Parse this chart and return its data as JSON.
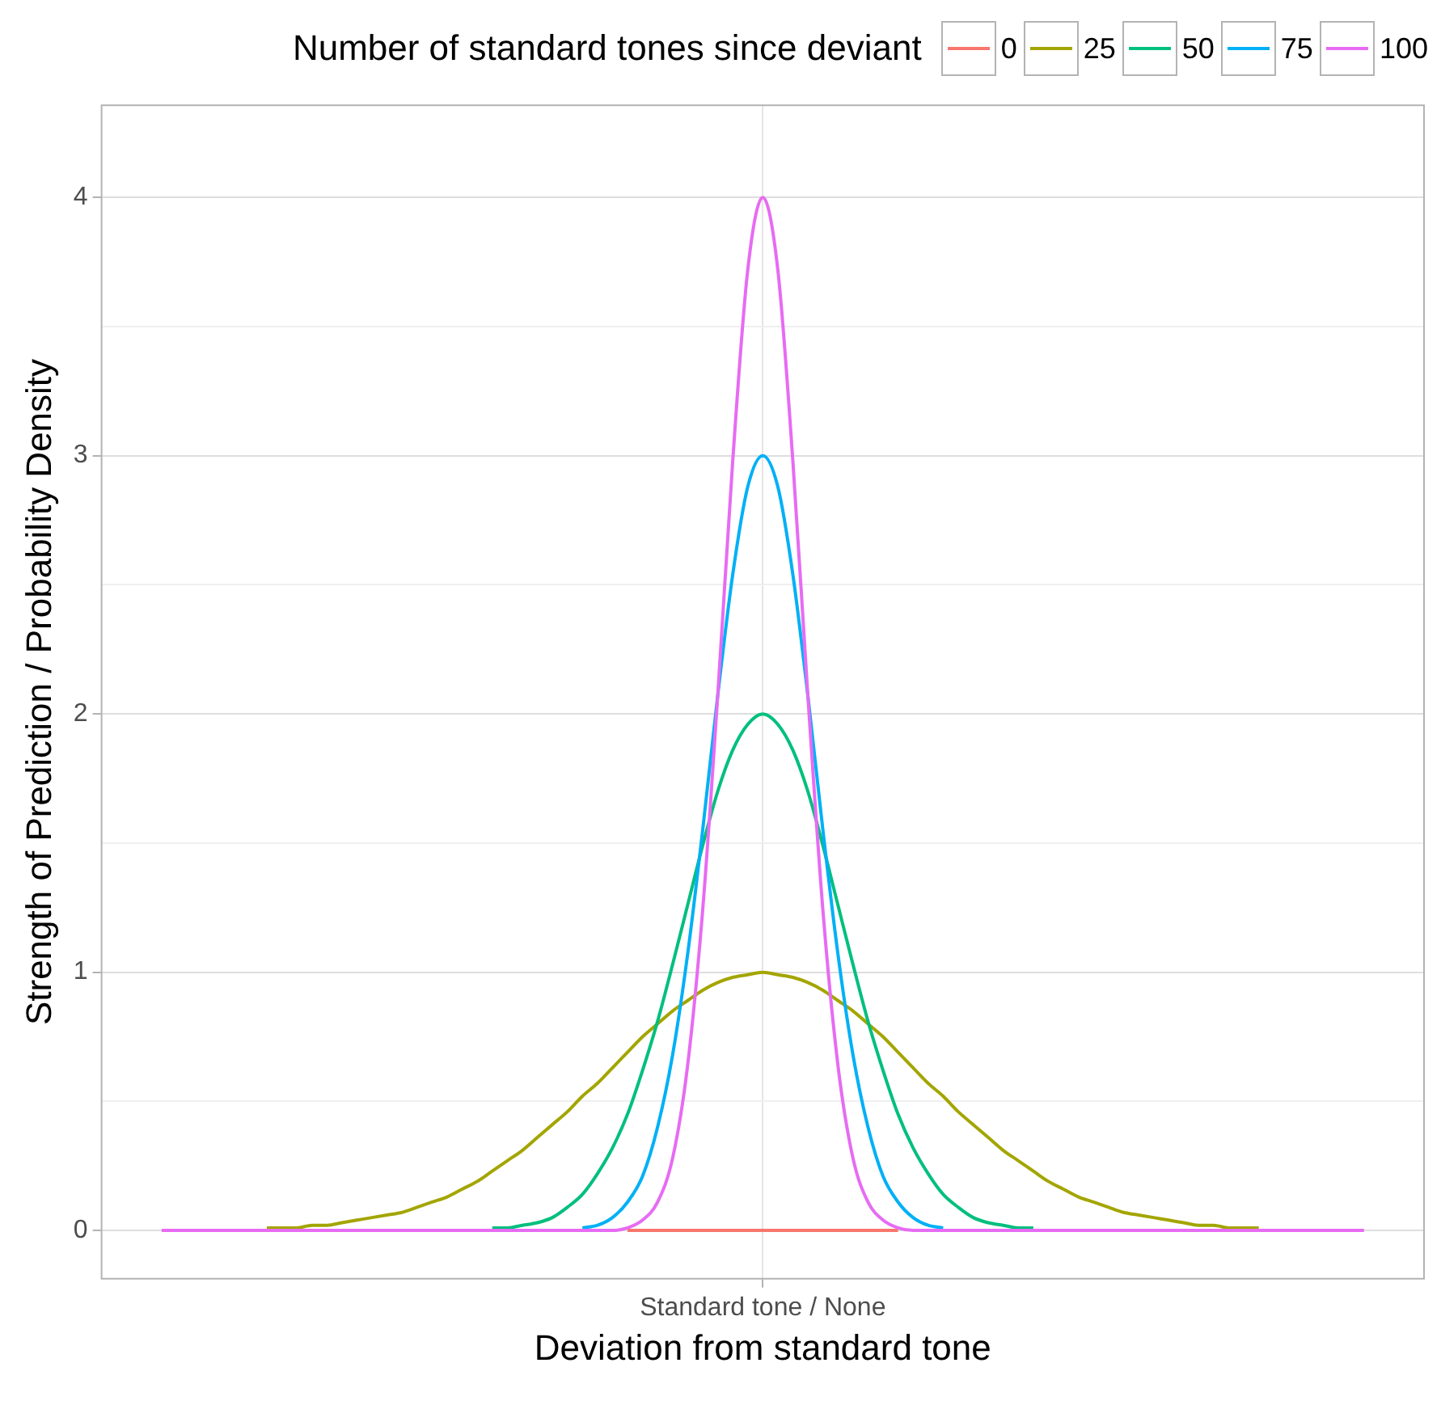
{
  "chart_data": {
    "type": "line",
    "xlabel": "Deviation from standard tone",
    "ylabel": "Strength of Prediction / Probability Density",
    "legend_title": "Number of standard tones since deviant",
    "legend": "top",
    "grid": true,
    "marker": "none",
    "line_style": "solid",
    "categories": [
      null,
      null,
      null,
      null,
      null,
      null,
      null,
      null,
      null,
      null,
      null,
      null,
      null,
      null,
      null,
      null,
      null,
      null,
      null,
      null,
      null,
      null,
      null,
      null,
      null,
      null,
      null,
      null,
      null,
      null,
      null,
      null,
      null,
      null,
      null,
      null,
      null,
      null,
      null,
      null,
      "Standard tone / None",
      null,
      null,
      null,
      null,
      null,
      null,
      null,
      null,
      null,
      null,
      null,
      null,
      null,
      null,
      null,
      null,
      null,
      null,
      null,
      null,
      null,
      null,
      null,
      null,
      null,
      null,
      null,
      null,
      null,
      null,
      null,
      null,
      null,
      null,
      null,
      null,
      null,
      null,
      null,
      null
    ],
    "ylim": [
      -0.19,
      4.36
    ],
    "yticks": [
      0,
      {
        "value": 0.5,
        "label": null
      },
      1,
      {
        "value": 1.5,
        "label": null
      },
      2,
      {
        "value": 2.5,
        "label": null
      },
      3,
      {
        "value": 3.5,
        "label": null
      },
      4
    ],
    "series": [
      {
        "name": "0",
        "color": "#f8766d",
        "values": [
          null,
          null,
          null,
          null,
          null,
          null,
          null,
          null,
          null,
          null,
          null,
          null,
          null,
          null,
          null,
          null,
          null,
          null,
          null,
          null,
          null,
          null,
          null,
          null,
          null,
          null,
          null,
          null,
          null,
          null,
          null,
          0,
          0,
          0,
          0,
          0,
          0,
          0,
          0,
          0,
          0,
          0,
          0,
          0,
          0,
          0,
          0,
          0,
          0,
          0,
          null,
          null,
          null,
          null,
          null,
          null,
          null,
          null,
          null,
          null,
          null,
          null,
          null,
          null,
          null,
          null,
          null,
          null,
          null,
          null,
          null,
          null,
          null,
          null,
          null,
          null,
          null,
          null,
          null,
          null,
          null
        ]
      },
      {
        "name": "25",
        "color": "#a3a500",
        "values": [
          null,
          null,
          null,
          null,
          null,
          null,
          null,
          0.01,
          0.01,
          0.01,
          0.02,
          0.02,
          0.03,
          0.04,
          0.05,
          0.06,
          0.07,
          0.09,
          0.11,
          0.13,
          0.16,
          0.19,
          0.23,
          0.27,
          0.31,
          0.36,
          0.41,
          0.46,
          0.52,
          0.57,
          0.63,
          0.69,
          0.75,
          0.8,
          0.85,
          0.89,
          0.93,
          0.96,
          0.98,
          0.99,
          1,
          0.99,
          0.98,
          0.96,
          0.93,
          0.89,
          0.85,
          0.8,
          0.75,
          0.69,
          0.63,
          0.57,
          0.52,
          0.46,
          0.41,
          0.36,
          0.31,
          0.27,
          0.23,
          0.19,
          0.16,
          0.13,
          0.11,
          0.09,
          0.07,
          0.06,
          0.05,
          0.04,
          0.03,
          0.02,
          0.02,
          0.01,
          0.01,
          0.01,
          null,
          null,
          null,
          null,
          null,
          null,
          null
        ]
      },
      {
        "name": "50",
        "color": "#00bf7d",
        "values": [
          null,
          null,
          null,
          null,
          null,
          null,
          null,
          null,
          null,
          null,
          null,
          null,
          null,
          null,
          null,
          null,
          null,
          null,
          null,
          null,
          null,
          null,
          0.01,
          0.01,
          0.02,
          0.03,
          0.05,
          0.09,
          0.14,
          0.22,
          0.32,
          0.45,
          0.62,
          0.81,
          1.03,
          1.26,
          1.49,
          1.7,
          1.86,
          1.96,
          2,
          1.96,
          1.86,
          1.7,
          1.49,
          1.26,
          1.03,
          0.81,
          0.62,
          0.45,
          0.32,
          0.22,
          0.14,
          0.09,
          0.05,
          0.03,
          0.02,
          0.01,
          0.01,
          null,
          null,
          null,
          null,
          null,
          null,
          null,
          null,
          null,
          null,
          null,
          null,
          null,
          null,
          null,
          null,
          null,
          null,
          null,
          null,
          null,
          null
        ]
      },
      {
        "name": "75",
        "color": "#00b0f6",
        "values": [
          null,
          null,
          null,
          null,
          null,
          null,
          null,
          null,
          null,
          null,
          null,
          null,
          null,
          null,
          null,
          null,
          null,
          null,
          null,
          null,
          null,
          null,
          null,
          null,
          null,
          null,
          null,
          null,
          0.01,
          0.02,
          0.05,
          0.11,
          0.21,
          0.4,
          0.68,
          1.07,
          1.55,
          2.07,
          2.54,
          2.88,
          3,
          2.88,
          2.54,
          2.07,
          1.55,
          1.07,
          0.68,
          0.4,
          0.21,
          0.11,
          0.05,
          0.02,
          0.01,
          null,
          null,
          null,
          null,
          null,
          null,
          null,
          null,
          null,
          null,
          null,
          null,
          null,
          null,
          null,
          null,
          null,
          null,
          null,
          null,
          null,
          null,
          null,
          null,
          null,
          null,
          null,
          null
        ]
      },
      {
        "name": "100",
        "color": "#e76bf3",
        "values": [
          0,
          0,
          0,
          0,
          0,
          0,
          0,
          0,
          0,
          0,
          0,
          0,
          0,
          0,
          0,
          0,
          0,
          0,
          0,
          0,
          0,
          0,
          0,
          0,
          0,
          0,
          0,
          0,
          0,
          0,
          0,
          0.01,
          0.04,
          0.11,
          0.28,
          0.64,
          1.24,
          2.07,
          2.98,
          3.72,
          4,
          3.72,
          2.98,
          2.07,
          1.24,
          0.64,
          0.28,
          0.11,
          0.04,
          0.01,
          0,
          0,
          0,
          0,
          0,
          0,
          0,
          0,
          0,
          0,
          0,
          0,
          0,
          0,
          0,
          0,
          0,
          0,
          0,
          0,
          0,
          0,
          0,
          0,
          0,
          0,
          0,
          0,
          0,
          0,
          0
        ]
      }
    ]
  }
}
